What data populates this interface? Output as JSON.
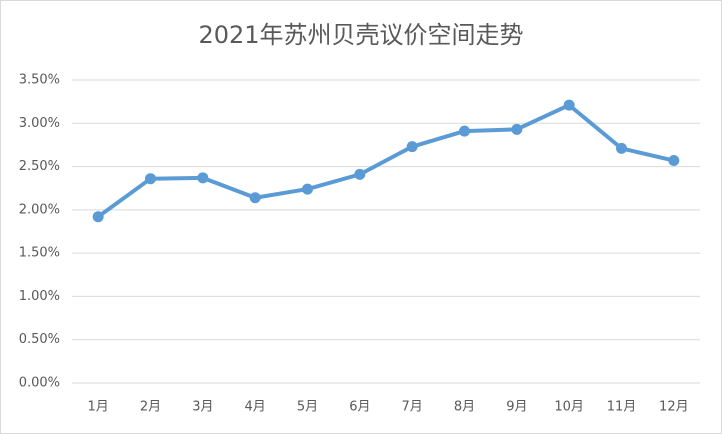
{
  "chart_data": {
    "type": "line",
    "title": "2021年苏州贝壳议价空间走势",
    "categories": [
      "1月",
      "2月",
      "3月",
      "4月",
      "5月",
      "6月",
      "7月",
      "8月",
      "9月",
      "10月",
      "11月",
      "12月"
    ],
    "series": [
      {
        "name": "议价空间",
        "color": "#5b9bd5",
        "values": [
          1.92,
          2.36,
          2.37,
          2.14,
          2.24,
          2.41,
          2.73,
          2.91,
          2.93,
          3.21,
          2.71,
          2.57
        ]
      }
    ],
    "ylim": [
      0,
      3.5
    ],
    "yticks": [
      {
        "value": 0,
        "label": "0.00%"
      },
      {
        "value": 0.5,
        "label": "0.50%"
      },
      {
        "value": 1,
        "label": "1.00%"
      },
      {
        "value": 1.5,
        "label": "1.50%"
      },
      {
        "value": 2,
        "label": "2.00%"
      },
      {
        "value": 2.5,
        "label": "2.50%"
      },
      {
        "value": 3,
        "label": "3.00%"
      },
      {
        "value": 3.5,
        "label": "3.50%"
      }
    ],
    "grid": true
  }
}
